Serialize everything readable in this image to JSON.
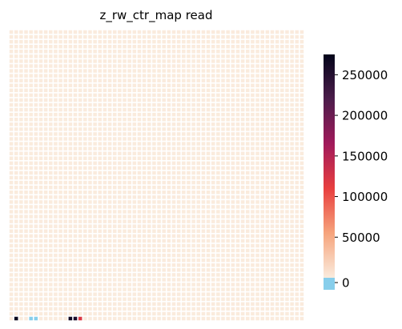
{
  "chart_data": {
    "type": "heatmap",
    "title": "z_rw_ctr_map read",
    "xlabel": "",
    "ylabel": "",
    "grid": {
      "rows": 60,
      "cols": 60
    },
    "default_value": 1,
    "zero_color": "#87ceeb",
    "cells": [
      {
        "row": 59,
        "col": 1,
        "value": 270000
      },
      {
        "row": 59,
        "col": 4,
        "value": 0
      },
      {
        "row": 59,
        "col": 5,
        "value": 0
      },
      {
        "row": 59,
        "col": 12,
        "value": 265000
      },
      {
        "row": 59,
        "col": 13,
        "value": 255000
      },
      {
        "row": 59,
        "col": 14,
        "value": 120000
      }
    ],
    "colorbar": {
      "vmin": 0,
      "vmax": 275000,
      "ticks": [
        0,
        50000,
        100000,
        150000,
        200000,
        250000
      ],
      "tick_labels": [
        "0",
        "50000",
        "100000",
        "150000",
        "200000",
        "250000"
      ],
      "colormap": [
        "#faebdd",
        "#f6a47c",
        "#e83f3f",
        "#a11a5b",
        "#4c1d4b",
        "#03051a"
      ]
    },
    "colors": {
      "cell_gap": "#ffffff",
      "text": "#000000"
    }
  }
}
